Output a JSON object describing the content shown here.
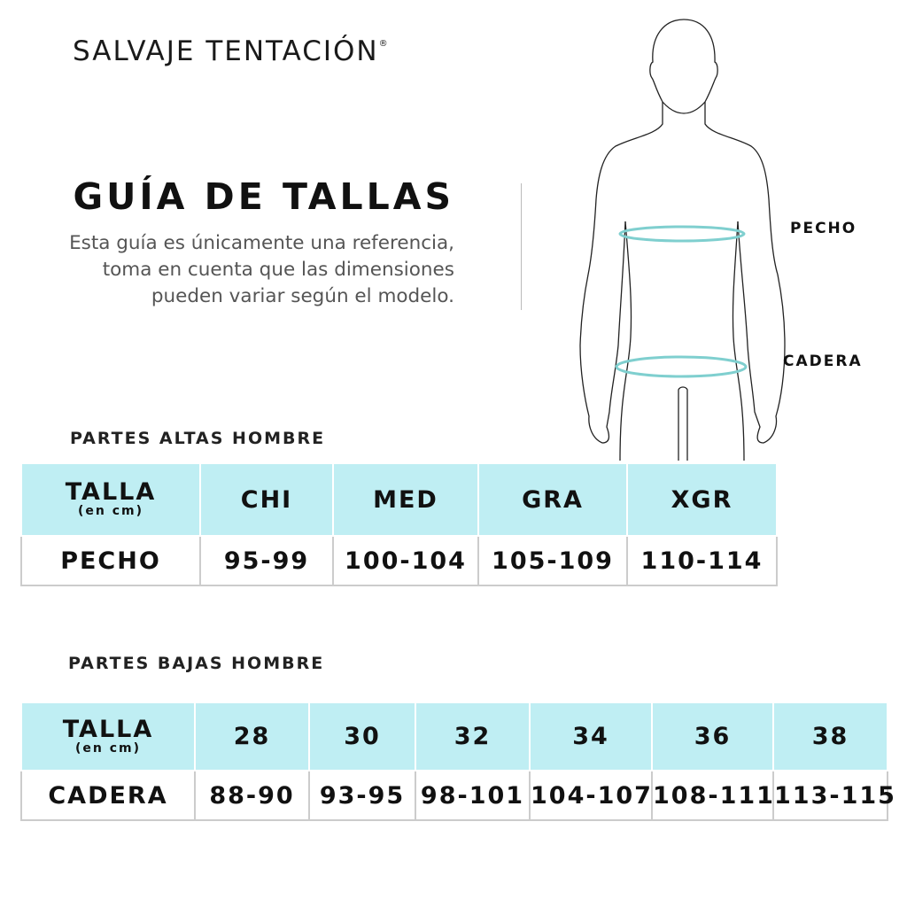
{
  "brand": {
    "name": "SALVAJE TENTACIÓN",
    "mark": "®"
  },
  "title": "GUÍA DE TALLAS",
  "description": "Esta guía es únicamente una referencia, toma en cuenta que las dimensiones pueden variar según el modelo.",
  "figure": {
    "labels": {
      "chest": "PECHO",
      "hip": "CADERA"
    },
    "ring_color": "#7fcfcf"
  },
  "colors": {
    "header_bg": "#bfeef3"
  },
  "tops": {
    "section": "PARTES ALTAS HOMBRE",
    "header_label": "TALLA",
    "header_unit": "(en cm)",
    "sizes": [
      "CHI",
      "MED",
      "GRA",
      "XGR"
    ],
    "row_label": "PECHO",
    "values": [
      "95-99",
      "100-104",
      "105-109",
      "110-114"
    ]
  },
  "bottoms": {
    "section": "PARTES BAJAS HOMBRE",
    "header_label": "TALLA",
    "header_unit": "(en cm)",
    "sizes": [
      "28",
      "30",
      "32",
      "34",
      "36",
      "38"
    ],
    "row_label": "CADERA",
    "values": [
      "88-90",
      "93-95",
      "98-101",
      "104-107",
      "108-111",
      "113-115"
    ]
  }
}
